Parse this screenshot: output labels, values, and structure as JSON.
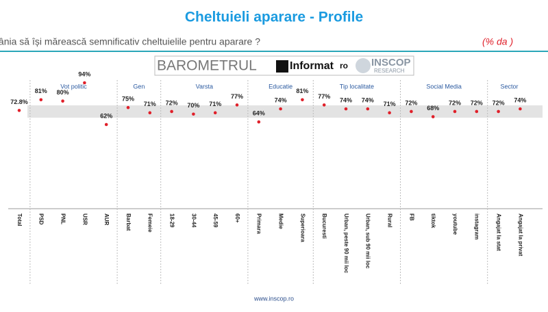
{
  "header": {
    "title": "Cheltuieli aparare - Profile",
    "subtitle": "Dvs personal ați fi de acord ca România să își mărească semnificativ cheltuielile pentru aparare ?",
    "subtitle_note": "(% da )"
  },
  "logo": {
    "barometer": "BAROMETRUL",
    "brand": "Informat",
    "brand_suffix": "ro",
    "partner": "INSCOP",
    "partner_sub": "RESEARCH"
  },
  "chart_data": {
    "type": "dot",
    "color": "#e0202a",
    "groups": [
      {
        "name": null,
        "categories": [
          "Total"
        ],
        "values": [
          72.8
        ],
        "value_labels": [
          "72.8%"
        ]
      },
      {
        "name": "Vot politic",
        "categories": [
          "PSD",
          "PNL",
          "USR",
          "AUR"
        ],
        "values": [
          81,
          80,
          94,
          62
        ],
        "value_labels": [
          "81%",
          "80%",
          "94%",
          "62%"
        ]
      },
      {
        "name": "Gen",
        "categories": [
          "Barbat",
          "Femeie"
        ],
        "values": [
          75,
          71
        ],
        "value_labels": [
          "75%",
          "71%"
        ]
      },
      {
        "name": "Varsta",
        "categories": [
          "18-29",
          "30-44",
          "45-59",
          "60+"
        ],
        "values": [
          72,
          70,
          71,
          77
        ],
        "value_labels": [
          "72%",
          "70%",
          "71%",
          "77%"
        ]
      },
      {
        "name": "Educatie",
        "categories": [
          "Primara",
          "Medie",
          "Superioara"
        ],
        "values": [
          64,
          74,
          81
        ],
        "value_labels": [
          "64%",
          "74%",
          "81%"
        ]
      },
      {
        "name": "Tip localitate",
        "categories": [
          "Bucuresti",
          "Urban, peste 90 mii loc",
          "Urban, sub 90 mii loc",
          "Rural"
        ],
        "values": [
          77,
          74,
          74,
          71
        ],
        "value_labels": [
          "77%",
          "74%",
          "74%",
          "71%"
        ]
      },
      {
        "name": "Social Media",
        "categories": [
          "FB",
          "tiktok",
          "youtube",
          "instagram"
        ],
        "values": [
          72,
          68,
          72,
          72
        ],
        "value_labels": [
          "72%",
          "68%",
          "72%",
          "72%"
        ]
      },
      {
        "name": "Sector",
        "categories": [
          "Angajat la stat",
          "Angajat la privat"
        ],
        "values": [
          72,
          74
        ],
        "value_labels": [
          "72%",
          "74%"
        ]
      }
    ]
  },
  "footer": {
    "url": "www.inscop.ro"
  }
}
